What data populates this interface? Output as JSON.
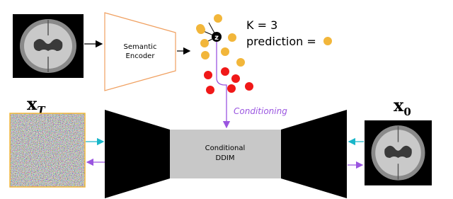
{
  "encoder": {
    "lines": [
      "Semantic",
      "Encoder"
    ]
  },
  "knn": {
    "node": "z",
    "k_text": "K = 3",
    "prediction": "prediction ="
  },
  "conditioning": "Conditioning",
  "ddim": {
    "lines": [
      "Conditional",
      "DDIM"
    ]
  },
  "input": {
    "symbol": "x",
    "subscript": "T"
  },
  "output": {
    "symbol": "x",
    "subscript": "0"
  }
}
